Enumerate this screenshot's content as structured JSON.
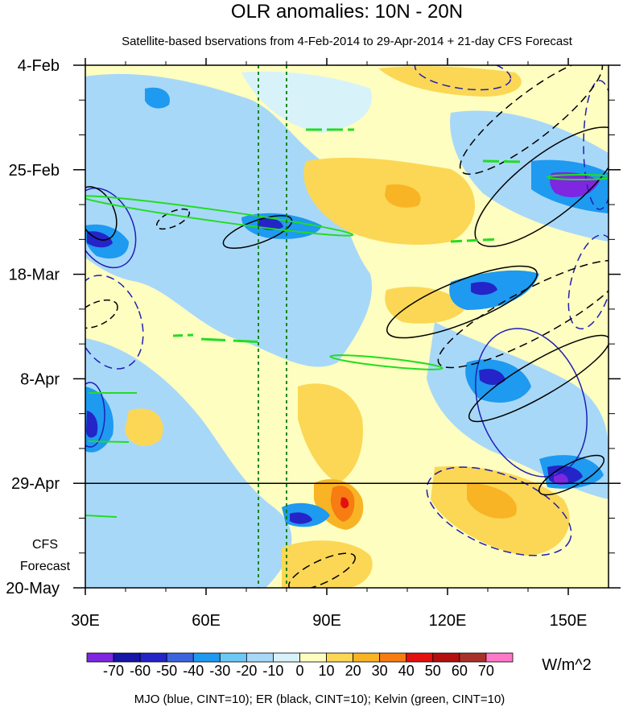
{
  "chart_data": {
    "type": "heatmap",
    "title": "OLR anomalies: 10N - 20N",
    "subtitle": "Satellite-based bservations from 4-Feb-2014 to 29-Apr-2014 + 21-day CFS Forecast",
    "x_axis": {
      "ticks": [
        {
          "value": 30,
          "label": "30E"
        },
        {
          "value": 60,
          "label": "60E"
        },
        {
          "value": 90,
          "label": "90E"
        },
        {
          "value": 120,
          "label": "120E"
        },
        {
          "value": 150,
          "label": "150E"
        }
      ],
      "range": [
        30,
        160
      ]
    },
    "y_axis": {
      "ticks": [
        {
          "label": "4-Feb"
        },
        {
          "label": "25-Feb"
        },
        {
          "label": "18-Mar"
        },
        {
          "label": "8-Apr"
        },
        {
          "label": "29-Apr"
        },
        {
          "label": "20-May"
        }
      ],
      "direction": "time increases downward"
    },
    "observation_end": "29-Apr",
    "forecast_label_lines": [
      "CFS",
      "Forecast"
    ],
    "reference_lines_longitude": [
      73,
      80
    ],
    "colorbar": {
      "levels": [
        -70,
        -60,
        -50,
        -40,
        -30,
        -20,
        -10,
        0,
        10,
        20,
        30,
        40,
        50,
        60,
        70
      ],
      "labels": [
        "-70",
        "-60",
        "-50",
        "-40",
        "-30",
        "-20",
        "-10",
        "0",
        "10",
        "20",
        "30",
        "40",
        "50",
        "60",
        "70"
      ],
      "colors": [
        "#7e26e0",
        "#1515a8",
        "#2424c8",
        "#3c64dc",
        "#1e9af0",
        "#6cc8f4",
        "#a8d8f8",
        "#d8f2fa",
        "#fefec0",
        "#fbd755",
        "#f8b424",
        "#f77c12",
        "#e41010",
        "#b40f0f",
        "#a8322a",
        "#ff78c8"
      ],
      "units": "W/m^2"
    },
    "contour_legend": "MJO (blue, CINT=10); ER (black, CINT=10); Kelvin (green, CINT=10)",
    "contour_colors": {
      "MJO": "#1f1fb4",
      "ER": "#000000",
      "Kelvin": "#22dd22"
    }
  }
}
